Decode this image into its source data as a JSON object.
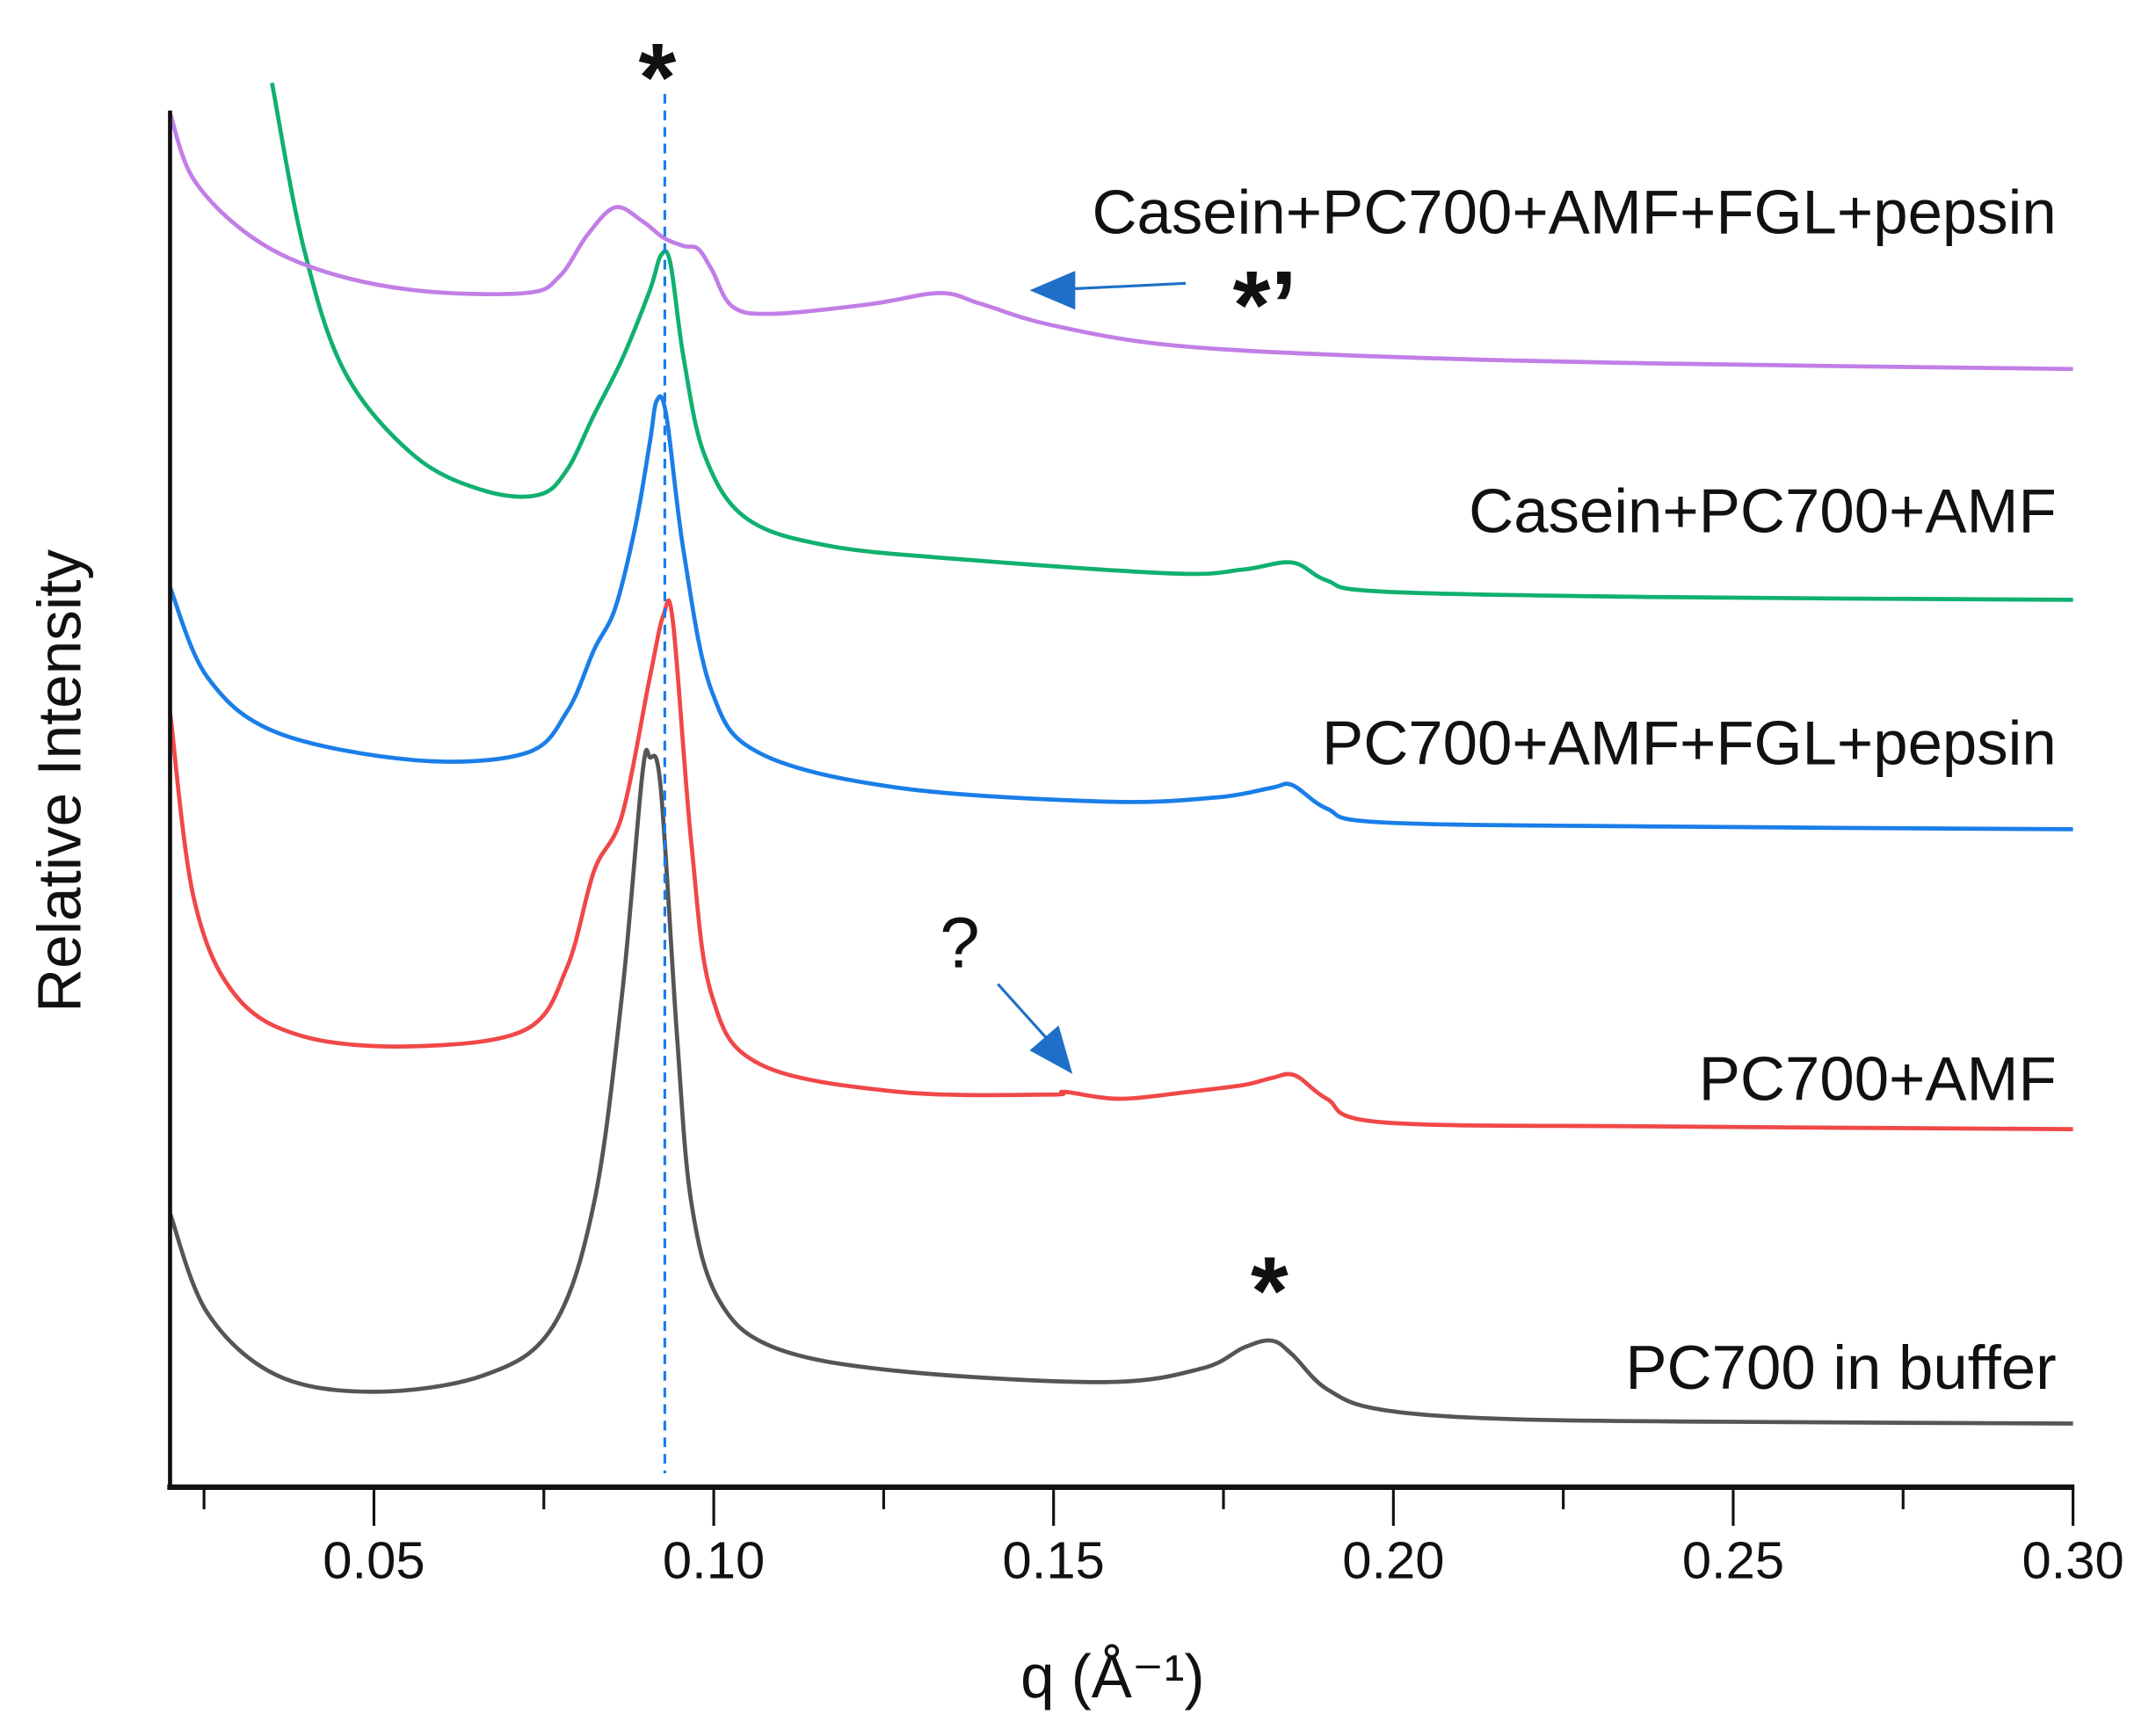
{
  "chart_data": {
    "type": "line",
    "title": "",
    "xlabel": "q (Å⁻¹)",
    "xlabel_var": "q",
    "xlabel_unit": "(Å",
    "xlabel_exp": "-1",
    "xlabel_close": ")",
    "ylabel": "Relative Intensity",
    "xlim": [
      0.02,
      0.3
    ],
    "ylim": [
      0,
      10
    ],
    "grid": false,
    "x_ticks": [
      "0.05",
      "0.10",
      "0.15",
      "0.20",
      "0.25",
      "0.30"
    ],
    "x_tick_values": [
      0.05,
      0.1,
      0.15,
      0.2,
      0.25,
      0.3
    ],
    "reference_line_q": 0.0928,
    "series": [
      {
        "name": "PC700 in buffer",
        "color": "#555555",
        "points": [
          [
            0.02,
            1.97
          ],
          [
            0.0255,
            1.25
          ],
          [
            0.0357,
            0.8
          ],
          [
            0.0499,
            0.68
          ],
          [
            0.0662,
            0.8
          ],
          [
            0.0763,
            1.15
          ],
          [
            0.0824,
            2.05
          ],
          [
            0.0865,
            3.55
          ],
          [
            0.0895,
            5.15
          ],
          [
            0.0906,
            5.27
          ],
          [
            0.0922,
            5.05
          ],
          [
            0.0946,
            3.25
          ],
          [
            0.0967,
            2.05
          ],
          [
            0.1007,
            1.35
          ],
          [
            0.1089,
            1.0
          ],
          [
            0.1272,
            0.83
          ],
          [
            0.1577,
            0.75
          ],
          [
            0.1719,
            0.85
          ],
          [
            0.178,
            1.0
          ],
          [
            0.1821,
            1.05
          ],
          [
            0.1851,
            0.95
          ],
          [
            0.1902,
            0.7
          ],
          [
            0.1983,
            0.55
          ],
          [
            0.2187,
            0.48
          ],
          [
            0.2593,
            0.46
          ],
          [
            0.3,
            0.45
          ]
        ]
      },
      {
        "name": "PC700+AMF",
        "color": "#f04848",
        "points": [
          [
            0.02,
            5.6
          ],
          [
            0.0235,
            4.25
          ],
          [
            0.0296,
            3.55
          ],
          [
            0.0397,
            3.25
          ],
          [
            0.056,
            3.18
          ],
          [
            0.0723,
            3.3
          ],
          [
            0.0784,
            3.75
          ],
          [
            0.0824,
            4.45
          ],
          [
            0.0865,
            4.85
          ],
          [
            0.0906,
            5.85
          ],
          [
            0.0926,
            6.3
          ],
          [
            0.094,
            6.25
          ],
          [
            0.0967,
            4.65
          ],
          [
            0.0997,
            3.55
          ],
          [
            0.1068,
            3.05
          ],
          [
            0.1272,
            2.85
          ],
          [
            0.1495,
            2.83
          ],
          [
            0.1516,
            2.85
          ],
          [
            0.1597,
            2.8
          ],
          [
            0.1699,
            2.85
          ],
          [
            0.178,
            2.9
          ],
          [
            0.1821,
            2.95
          ],
          [
            0.1855,
            2.97
          ],
          [
            0.1902,
            2.8
          ],
          [
            0.1983,
            2.63
          ],
          [
            0.239,
            2.6
          ],
          [
            0.3,
            2.58
          ]
        ]
      },
      {
        "name": "PC700+AMF+FGL+pepsin",
        "color": "#1a7ee8",
        "points": [
          [
            0.02,
            6.5
          ],
          [
            0.0255,
            5.85
          ],
          [
            0.0357,
            5.45
          ],
          [
            0.056,
            5.25
          ],
          [
            0.0723,
            5.3
          ],
          [
            0.0784,
            5.6
          ],
          [
            0.0824,
            6.05
          ],
          [
            0.0855,
            6.35
          ],
          [
            0.0885,
            6.95
          ],
          [
            0.0906,
            7.55
          ],
          [
            0.0916,
            7.85
          ],
          [
            0.093,
            7.75
          ],
          [
            0.0956,
            6.75
          ],
          [
            0.0997,
            5.75
          ],
          [
            0.1068,
            5.3
          ],
          [
            0.1272,
            5.05
          ],
          [
            0.1577,
            4.95
          ],
          [
            0.1739,
            4.98
          ],
          [
            0.1821,
            5.05
          ],
          [
            0.1851,
            5.07
          ],
          [
            0.1902,
            4.9
          ],
          [
            0.1983,
            4.8
          ],
          [
            0.239,
            4.77
          ],
          [
            0.3,
            4.75
          ]
        ]
      },
      {
        "name": "Casein+PC700+AMF",
        "color": "#10b070",
        "points": [
          [
            0.035,
            10.15
          ],
          [
            0.0397,
            8.95
          ],
          [
            0.0458,
            8.05
          ],
          [
            0.056,
            7.45
          ],
          [
            0.0662,
            7.2
          ],
          [
            0.0743,
            7.17
          ],
          [
            0.0784,
            7.35
          ],
          [
            0.0824,
            7.75
          ],
          [
            0.0865,
            8.15
          ],
          [
            0.0906,
            8.65
          ],
          [
            0.0922,
            8.9
          ],
          [
            0.0936,
            8.85
          ],
          [
            0.0956,
            8.15
          ],
          [
            0.0987,
            7.45
          ],
          [
            0.1048,
            7.0
          ],
          [
            0.117,
            6.8
          ],
          [
            0.1373,
            6.7
          ],
          [
            0.1678,
            6.6
          ],
          [
            0.178,
            6.63
          ],
          [
            0.1851,
            6.68
          ],
          [
            0.1902,
            6.55
          ],
          [
            0.1983,
            6.47
          ],
          [
            0.239,
            6.43
          ],
          [
            0.3,
            6.41
          ]
        ]
      },
      {
        "name": "Casein+PC700+AMF+FGL+pepsin",
        "color": "#c27ee6",
        "points": [
          [
            0.02,
            9.93
          ],
          [
            0.0235,
            9.45
          ],
          [
            0.0316,
            9.05
          ],
          [
            0.0418,
            8.8
          ],
          [
            0.056,
            8.65
          ],
          [
            0.0723,
            8.63
          ],
          [
            0.0773,
            8.75
          ],
          [
            0.0814,
            9.05
          ],
          [
            0.0855,
            9.25
          ],
          [
            0.0895,
            9.15
          ],
          [
            0.0926,
            9.03
          ],
          [
            0.0956,
            8.97
          ],
          [
            0.0977,
            8.95
          ],
          [
            0.0997,
            8.8
          ],
          [
            0.1028,
            8.53
          ],
          [
            0.1089,
            8.48
          ],
          [
            0.1231,
            8.55
          ],
          [
            0.1333,
            8.63
          ],
          [
            0.1394,
            8.55
          ],
          [
            0.1495,
            8.4
          ],
          [
            0.1678,
            8.25
          ],
          [
            0.1983,
            8.17
          ],
          [
            0.239,
            8.12
          ],
          [
            0.3,
            8.08
          ]
        ]
      }
    ],
    "annotations": {
      "star_top": "*",
      "star_prime": "*’",
      "star_bottom": "*",
      "question": "?"
    },
    "arrow_color": "#1f6fc8"
  }
}
